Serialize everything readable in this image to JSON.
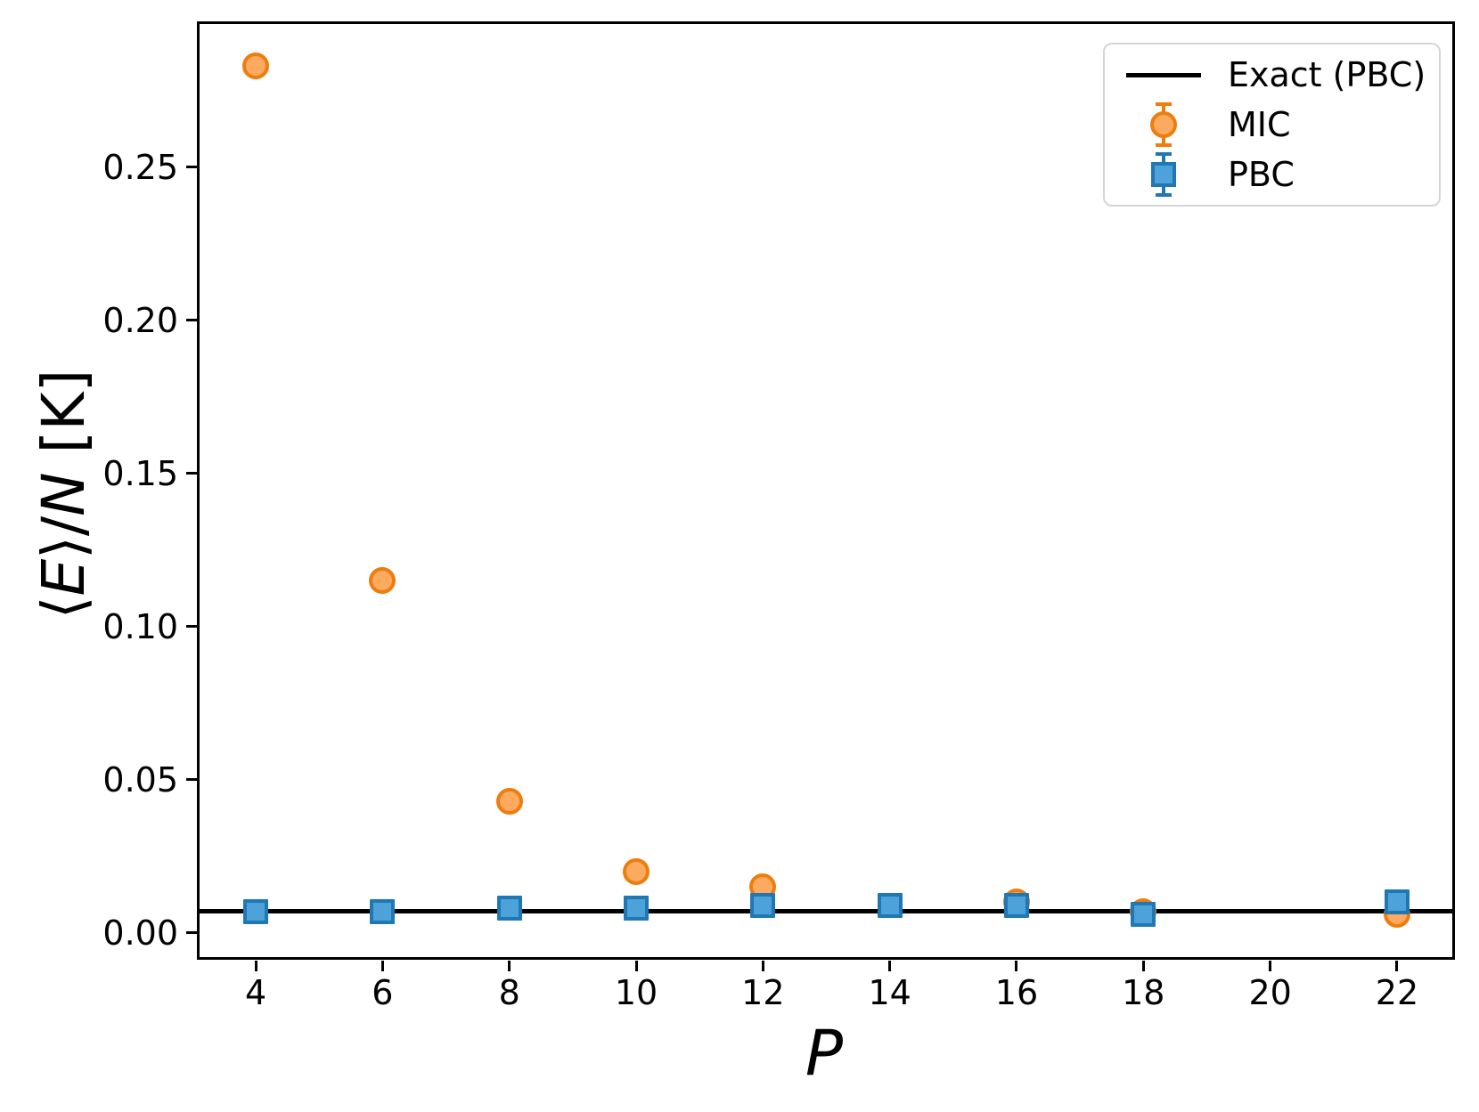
{
  "figure": {
    "background": "#ffffff"
  },
  "chart_data": {
    "type": "scatter",
    "title": "",
    "xlabel": "P",
    "ylabel": "⟨E⟩/N [K]",
    "ylabel_parts": [
      {
        "text": "⟨",
        "italic": false
      },
      {
        "text": "E",
        "italic": true
      },
      {
        "text": "⟩/",
        "italic": false
      },
      {
        "text": "N",
        "italic": true
      },
      {
        "text": " [K]",
        "italic": false
      }
    ],
    "xlim": [
      3.1,
      22.9
    ],
    "ylim": [
      -0.0085,
      0.297
    ],
    "grid": false,
    "x_ticks": [
      4,
      6,
      8,
      10,
      12,
      14,
      16,
      18,
      20,
      22
    ],
    "x_tick_labels": [
      "4",
      "6",
      "8",
      "10",
      "12",
      "14",
      "16",
      "18",
      "20",
      "22"
    ],
    "y_ticks": [
      0.0,
      0.05,
      0.1,
      0.15,
      0.2,
      0.25
    ],
    "y_tick_labels": [
      "0.00",
      "0.05",
      "0.10",
      "0.15",
      "0.20",
      "0.25"
    ],
    "exact_line": {
      "label": "Exact (PBC)",
      "value": 0.007,
      "color": "#000000"
    },
    "series": [
      {
        "name": "MIC",
        "marker": "circle",
        "edge_color": "#ee7d0e",
        "fill_color": "#fcaa60",
        "x": [
          4,
          6,
          8,
          10,
          12,
          16,
          18,
          22
        ],
        "y": [
          0.283,
          0.115,
          0.043,
          0.02,
          0.015,
          0.01,
          0.007,
          0.006
        ]
      },
      {
        "name": "PBC",
        "marker": "square",
        "edge_color": "#1f77b4",
        "fill_color": "#4da2d9",
        "x": [
          4,
          6,
          8,
          10,
          12,
          14,
          16,
          18,
          22
        ],
        "y": [
          0.007,
          0.007,
          0.008,
          0.008,
          0.009,
          0.009,
          0.009,
          0.006,
          0.01
        ]
      }
    ],
    "legend": {
      "position": "upper right",
      "entries": [
        {
          "label": "Exact (PBC)",
          "glyph": "line",
          "edge_color": "#000000",
          "fill_color": "#000000"
        },
        {
          "label": "MIC",
          "glyph": "errorbar-circle",
          "edge_color": "#ee7d0e",
          "fill_color": "#fcaa60"
        },
        {
          "label": "PBC",
          "glyph": "errorbar-square",
          "edge_color": "#1f77b4",
          "fill_color": "#4da2d9"
        }
      ]
    }
  }
}
